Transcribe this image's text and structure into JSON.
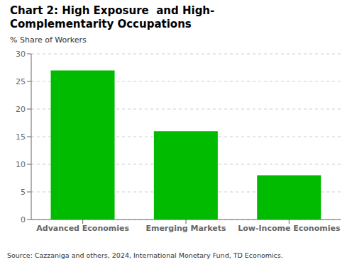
{
  "chart_data": {
    "type": "bar",
    "title": "Chart 2: High Exposure  and High-\nComplementarity Occupations",
    "ylabel": "% Share of Workers",
    "categories": [
      "Advanced Economies",
      "Emerging Markets",
      "Low-Income Economies"
    ],
    "values": [
      27,
      16,
      8
    ],
    "color": "#00bb00",
    "ylim": [
      0,
      30
    ],
    "yticks": [
      0,
      5,
      10,
      15,
      20,
      25,
      30
    ],
    "grid": true,
    "source": "Source: Cazzaniga and others, 2024, International Monetary Fund, TD Economics."
  }
}
